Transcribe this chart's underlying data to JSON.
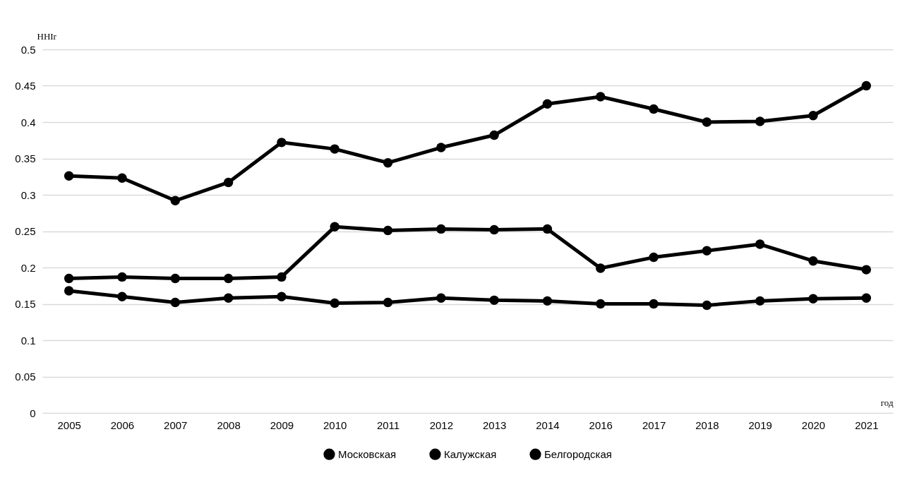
{
  "chart_data": {
    "type": "line",
    "xlabel": "год",
    "ylabel": "HHIr",
    "categories": [
      "2005",
      "2006",
      "2007",
      "2008",
      "2009",
      "2010",
      "2011",
      "2012",
      "2013",
      "2014",
      "2016",
      "2017",
      "2018",
      "2019",
      "2020",
      "2021"
    ],
    "series": [
      {
        "name": "Московская",
        "color": "#000000",
        "values": [
          0.168,
          0.16,
          0.152,
          0.158,
          0.16,
          0.151,
          0.152,
          0.158,
          0.155,
          0.154,
          0.15,
          0.15,
          0.148,
          0.154,
          0.157,
          0.158
        ]
      },
      {
        "name": "Калужская",
        "color": "#000000",
        "values": [
          0.185,
          0.187,
          0.185,
          0.185,
          0.187,
          0.256,
          0.251,
          0.253,
          0.252,
          0.253,
          0.199,
          0.214,
          0.223,
          0.232,
          0.209,
          0.197
        ]
      },
      {
        "name": "Белгородская",
        "color": "#000000",
        "values": [
          0.326,
          0.323,
          0.292,
          0.317,
          0.372,
          0.363,
          0.344,
          0.365,
          0.382,
          0.425,
          0.435,
          0.418,
          0.4,
          0.401,
          0.409,
          0.45
        ]
      }
    ],
    "ylim": [
      0,
      0.5
    ],
    "yticks": [
      0,
      0.05,
      0.1,
      0.15,
      0.2,
      0.25,
      0.3,
      0.35,
      0.4,
      0.45,
      0.5
    ],
    "grid": "y",
    "legend": "bottom",
    "marker": "circle",
    "line_style": "solid"
  }
}
